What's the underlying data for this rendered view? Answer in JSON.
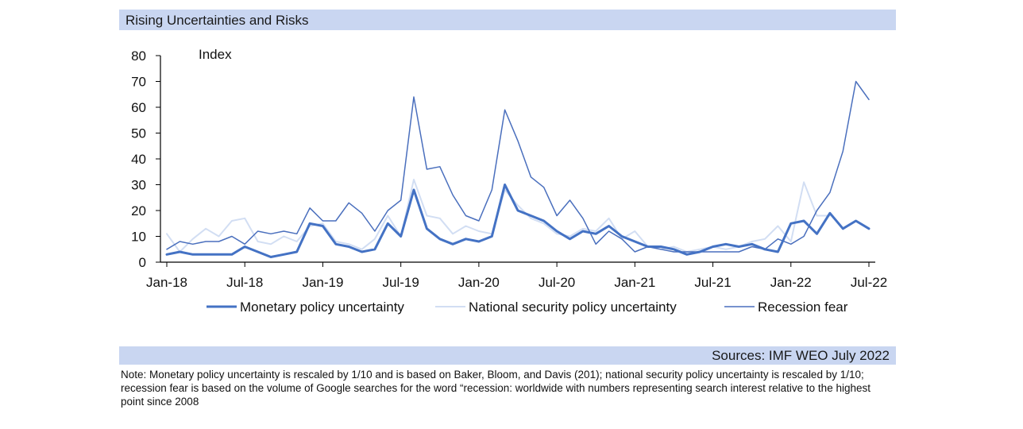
{
  "title": "Rising Uncertainties and Risks",
  "source": "Sources: IMF WEO July 2022",
  "note": "Note: Monetary policy uncertainty is rescaled by 1/10 and is based on Baker, Bloom, and Davis (201); national security policy uncertainty is rescaled by 1/10; recession fear is based on the volume of Google searches for the word “recession: worldwide with numbers representing search interest relative to the highest point since 2008",
  "chart_data": {
    "type": "line",
    "title": "Rising Uncertainties and Risks",
    "ylabel": "Index",
    "xlabel": "",
    "ylim": [
      0,
      80
    ],
    "yticks": [
      0,
      10,
      20,
      30,
      40,
      50,
      60,
      70,
      80
    ],
    "x_range": [
      0,
      54
    ],
    "xticks": [
      {
        "i": 0,
        "label": "Jan-18"
      },
      {
        "i": 6,
        "label": "Jul-18"
      },
      {
        "i": 12,
        "label": "Jan-19"
      },
      {
        "i": 18,
        "label": "Jul-19"
      },
      {
        "i": 24,
        "label": "Jan-20"
      },
      {
        "i": 30,
        "label": "Jul-20"
      },
      {
        "i": 36,
        "label": "Jan-21"
      },
      {
        "i": 42,
        "label": "Jul-21"
      },
      {
        "i": 48,
        "label": "Jan-22"
      },
      {
        "i": 54,
        "label": "Jul-22"
      }
    ],
    "legend_position": "bottom",
    "series": [
      {
        "name": "Monetary policy uncertainty",
        "color": "#4472c4",
        "width": 3,
        "values": [
          3,
          4,
          3,
          3,
          3,
          3,
          6,
          4,
          2,
          3,
          4,
          15,
          14,
          7,
          6,
          4,
          5,
          15,
          10,
          28,
          13,
          9,
          7,
          9,
          8,
          10,
          30,
          20,
          18,
          16,
          12,
          9,
          12,
          11,
          14,
          10,
          8,
          6,
          6,
          5,
          3,
          4,
          6,
          7,
          6,
          7,
          5,
          4,
          15,
          16,
          11,
          19,
          13,
          16,
          13
        ]
      },
      {
        "name": "National security policy uncertainty",
        "color": "#d2def3",
        "width": 2,
        "values": [
          11,
          4,
          9,
          13,
          10,
          16,
          17,
          8,
          7,
          10,
          8,
          14,
          15,
          8,
          7,
          5,
          9,
          18,
          10,
          32,
          18,
          17,
          11,
          14,
          12,
          11,
          28,
          22,
          17,
          15,
          11,
          10,
          13,
          12,
          17,
          9,
          12,
          6,
          5,
          6,
          4,
          5,
          6,
          5,
          6,
          8,
          9,
          14,
          8,
          31,
          18,
          18,
          null,
          null,
          null
        ]
      },
      {
        "name": "Recession fear",
        "color": "#4a6fbd",
        "width": 1.5,
        "values": [
          5,
          8,
          7,
          8,
          8,
          10,
          7,
          12,
          11,
          12,
          11,
          21,
          16,
          16,
          23,
          19,
          12,
          20,
          24,
          64,
          36,
          37,
          26,
          18,
          16,
          28,
          59,
          47,
          33,
          29,
          18,
          24,
          17,
          7,
          12,
          9,
          4,
          6,
          5,
          4,
          4,
          4,
          4,
          4,
          4,
          6,
          5,
          9,
          7,
          10,
          20,
          27,
          43,
          70,
          63
        ]
      }
    ]
  }
}
